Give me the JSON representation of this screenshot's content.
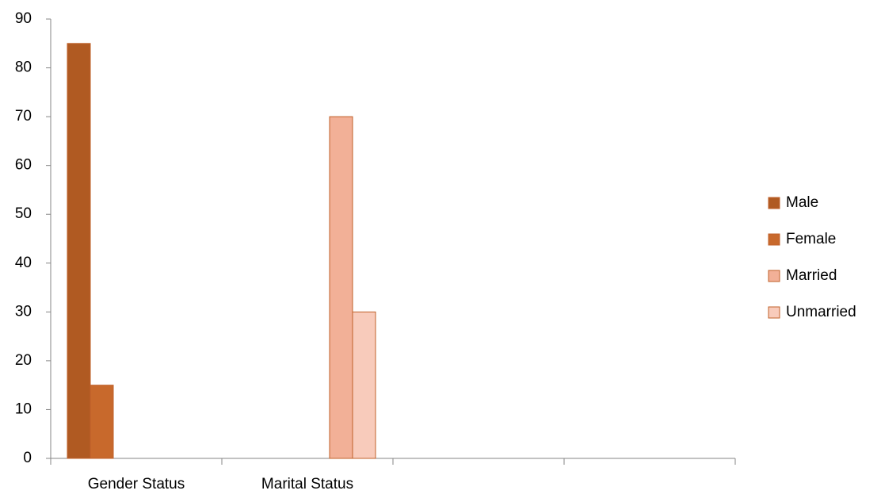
{
  "chart_data": {
    "type": "bar",
    "categories": [
      "Gender Status",
      "Marital Status",
      null,
      null
    ],
    "series": [
      {
        "name": "Male",
        "color": "#b05a22",
        "values": [
          85,
          null,
          null,
          null
        ]
      },
      {
        "name": "Female",
        "color": "#c8692c",
        "values": [
          15,
          null,
          null,
          null
        ]
      },
      {
        "name": "Married",
        "color": "#f2b097",
        "values": [
          null,
          70,
          null,
          null
        ]
      },
      {
        "name": "Unmarried",
        "color": "#f8cbbb",
        "values": [
          null,
          30,
          null,
          null
        ]
      }
    ],
    "ylim": [
      0,
      90
    ],
    "yticks": [
      0,
      10,
      20,
      30,
      40,
      50,
      60,
      70,
      80,
      90
    ],
    "legend": "right"
  }
}
